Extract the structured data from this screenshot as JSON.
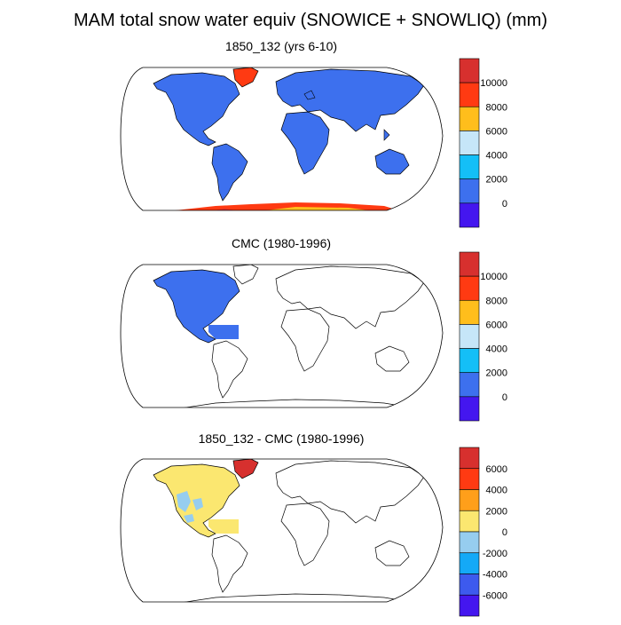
{
  "figure": {
    "title": "MAM total snow water equiv (SNOWICE + SNOWLIQ) (mm)"
  },
  "panels": [
    {
      "title": "1850_132 (yrs 6-10)",
      "colorbar": {
        "labels": [
          "10000",
          "8000",
          "6000",
          "4000",
          "2000",
          "0"
        ],
        "colors": [
          "#d7302e",
          "#ff3a12",
          "#ffbe1c",
          "#c6e6f8",
          "#14bff7",
          "#3d70ee",
          "#4416ef"
        ]
      }
    },
    {
      "title": "CMC (1980-1996)",
      "colorbar": {
        "labels": [
          "10000",
          "8000",
          "6000",
          "4000",
          "2000",
          "0"
        ],
        "colors": [
          "#d7302e",
          "#ff3a12",
          "#ffbe1c",
          "#c6e6f8",
          "#14bff7",
          "#3d70ee",
          "#4416ef"
        ]
      }
    },
    {
      "title": "1850_132 - CMC (1980-1996)",
      "colorbar": {
        "labels": [
          "6000",
          "4000",
          "2000",
          "0",
          "-2000",
          "-4000",
          "-6000"
        ],
        "colors": [
          "#d7302e",
          "#ff3a12",
          "#ff9f1a",
          "#fbe770",
          "#96cdef",
          "#14a9f7",
          "#3d5aee",
          "#4416ef"
        ]
      }
    }
  ],
  "chart_data": [
    {
      "type": "heatmap",
      "title": "1850_132 (yrs 6-10)",
      "projection": "robinson",
      "colorbar_levels": [
        0,
        2000,
        4000,
        6000,
        8000,
        10000
      ],
      "regions": [
        {
          "name": "north-america",
          "value_range": [
            0,
            2000
          ]
        },
        {
          "name": "south-america",
          "value_range": [
            0,
            2000
          ]
        },
        {
          "name": "eurasia",
          "value_range": [
            0,
            2000
          ]
        },
        {
          "name": "africa",
          "value_range": [
            0,
            2000
          ]
        },
        {
          "name": "australia",
          "value_range": [
            0,
            2000
          ]
        },
        {
          "name": "greenland",
          "value_range": [
            8000,
            10000
          ]
        },
        {
          "name": "antarctica",
          "value_range": [
            8000,
            12000
          ]
        }
      ]
    },
    {
      "type": "heatmap",
      "title": "CMC (1980-1996)",
      "projection": "robinson",
      "colorbar_levels": [
        0,
        2000,
        4000,
        6000,
        8000,
        10000
      ],
      "regions": [
        {
          "name": "north-america",
          "value_range": [
            0,
            2000
          ]
        }
      ]
    },
    {
      "type": "heatmap",
      "title": "1850_132 - CMC (1980-1996)",
      "projection": "robinson",
      "colorbar_levels": [
        -6000,
        -4000,
        -2000,
        0,
        2000,
        4000,
        6000
      ],
      "regions": [
        {
          "name": "north-america",
          "value_range": [
            0,
            2000
          ]
        },
        {
          "name": "north-america-interior",
          "value_range": [
            -2000,
            0
          ]
        },
        {
          "name": "greenland",
          "value_range": [
            6000,
            8000
          ]
        }
      ]
    }
  ]
}
